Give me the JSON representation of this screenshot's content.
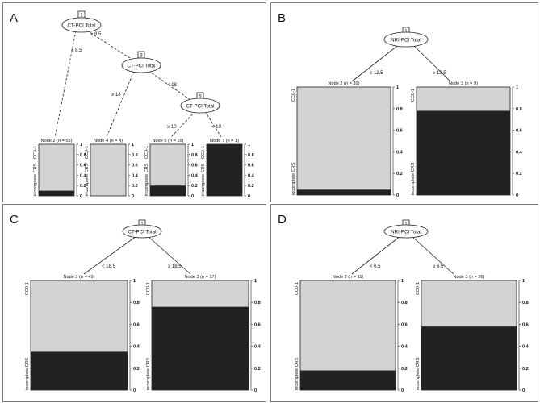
{
  "panels": {
    "A": {
      "label": "A",
      "nodes": {
        "n1": {
          "id": "1",
          "text": "CT-PCI Total"
        },
        "n3": {
          "id": "3",
          "text": "CT-PCI Total"
        },
        "n5": {
          "id": "5",
          "text": "CT-PCI Total"
        }
      },
      "edges": {
        "e1L": "< 8.5",
        "e1R": "≥ 8.5",
        "e3L": "≥ 18",
        "e3R": "< 18",
        "e5L": "≥ 10",
        "e5R": "< 10"
      },
      "leaves": [
        {
          "title": "Node 2 (n = 65)",
          "incomplete": 0.1
        },
        {
          "title": "Node 4 (n = 4)",
          "incomplete": 0.0
        },
        {
          "title": "Node 6 (n = 10)",
          "incomplete": 0.2
        },
        {
          "title": "Node 7 (n = 1)",
          "incomplete": 1.0
        }
      ]
    },
    "B": {
      "label": "B",
      "nodes": {
        "n1": {
          "id": "1",
          "text": "NRI-PCI Total"
        }
      },
      "edges": {
        "e1L": "≤ 12.5",
        "e1R": "≥ 12.5"
      },
      "leaves": [
        {
          "title": "Node 2 (n = 39)",
          "incomplete": 0.05
        },
        {
          "title": "Node 3 (n = 9)",
          "incomplete": 0.78
        }
      ]
    },
    "C": {
      "label": "C",
      "nodes": {
        "n1": {
          "id": "1",
          "text": "CT-PCI Total"
        }
      },
      "edges": {
        "e1L": "< 18.5",
        "e1R": "≥ 18.5"
      },
      "leaves": [
        {
          "title": "Node 2 (n = 49)",
          "incomplete": 0.35
        },
        {
          "title": "Node 3 (n = 17)",
          "incomplete": 0.76
        }
      ]
    },
    "D": {
      "label": "D",
      "nodes": {
        "n1": {
          "id": "1",
          "text": "NRI-PCI Total"
        }
      },
      "edges": {
        "e1L": "< 6.5",
        "e1R": "≥ 6.5"
      },
      "leaves": [
        {
          "title": "Node 2 (n = 11)",
          "incomplete": 0.18
        },
        {
          "title": "Node 3 (n = 26)",
          "incomplete": 0.58
        }
      ]
    }
  },
  "labels": {
    "top": "CC0-1",
    "bottom": "incomplete CRS"
  },
  "ticks": [
    "0",
    "0.2",
    "0.4",
    "0.6",
    "0.8",
    "1"
  ],
  "colors": {
    "complete": "#d3d3d3",
    "incomplete": "#222222",
    "line": "#222222",
    "frame": "#7a7a7a"
  }
}
